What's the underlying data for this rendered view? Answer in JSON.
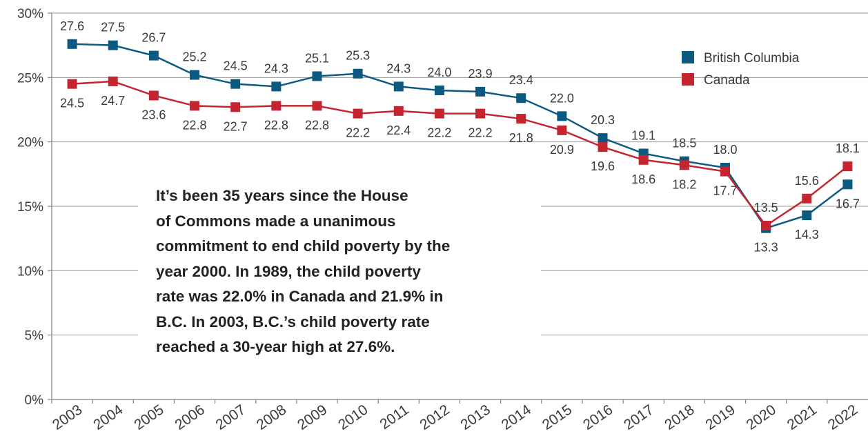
{
  "chart_data": {
    "type": "line",
    "categories": [
      "2003",
      "2004",
      "2005",
      "2006",
      "2007",
      "2008",
      "2009",
      "2010",
      "2011",
      "2012",
      "2013",
      "2014",
      "2015",
      "2016",
      "2017",
      "2018",
      "2019",
      "2020",
      "2021",
      "2022"
    ],
    "series": [
      {
        "name": "British Columbia",
        "color": "#0d5a80",
        "marker": "square",
        "values": [
          27.6,
          27.5,
          26.7,
          25.2,
          24.5,
          24.3,
          25.1,
          25.3,
          24.3,
          24.0,
          23.9,
          23.4,
          22.0,
          20.3,
          19.1,
          18.5,
          18.0,
          13.3,
          14.3,
          16.7
        ],
        "labels": [
          "27.6",
          "27.5",
          "26.7",
          "25.2",
          "24.5",
          "24.3",
          "25.1",
          "25.3",
          "24.3",
          "24.0",
          "23.9",
          "23.4",
          "22.0",
          "20.3",
          "19.1",
          "18.5",
          "18.0",
          "13.3",
          "14.3",
          "16.7"
        ]
      },
      {
        "name": "Canada",
        "color": "#c4252f",
        "marker": "square",
        "values": [
          24.5,
          24.7,
          23.6,
          22.8,
          22.7,
          22.8,
          22.8,
          22.2,
          22.4,
          22.2,
          22.2,
          21.8,
          20.9,
          19.6,
          18.6,
          18.2,
          17.7,
          13.5,
          15.6,
          18.1
        ],
        "labels": [
          "24.5",
          "24.7",
          "23.6",
          "22.8",
          "22.7",
          "22.8",
          "22.8",
          "22.2",
          "22.4",
          "22.2",
          "22.2",
          "21.8",
          "20.9",
          "19.6",
          "18.6",
          "18.2",
          "17.7",
          "13.5",
          "15.6",
          "18.1"
        ]
      }
    ],
    "ylim": [
      0,
      30
    ],
    "yticks": [
      0,
      5,
      10,
      15,
      20,
      25,
      30
    ],
    "ytick_labels": [
      "0%",
      "5%",
      "10%",
      "15%",
      "20%",
      "25%",
      "30%"
    ],
    "grid": true,
    "legend": "top-right",
    "annotation": "It’s been 35 years since the House of Commons made a unanimous commitment to end child poverty by the year 2000. In 1989, the child poverty rate was 22.0% in Canada and 21.9% in B.C. In 2003, B.C.’s child poverty rate reached a 30-year high at 27.6%."
  },
  "annotation_lines": [
    "It’s been 35 years since the House",
    "of Commons made a unanimous",
    "commitment to end child poverty by the",
    "year 2000. In 1989, the child poverty",
    "rate was 22.0% in Canada and 21.9% in",
    "B.C. In 2003, B.C.’s child poverty rate",
    "reached a 30-year high at 27.6%."
  ]
}
